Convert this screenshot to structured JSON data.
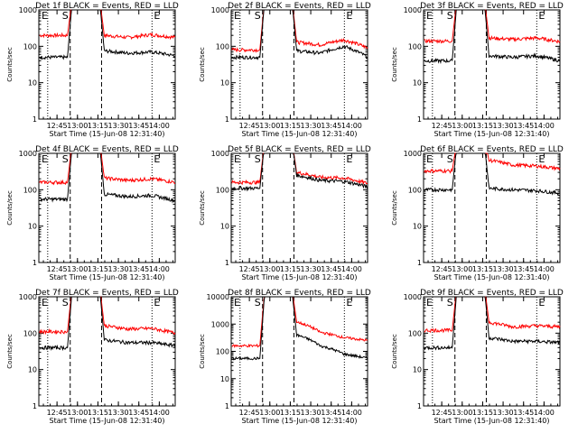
{
  "chart_data": [
    {
      "type": "line",
      "title": "Det 1f BLACK = Events, RED = LLD",
      "xlabel": "Start Time (15-Jun-08 12:31:40)",
      "ylabel": "Counts/sec",
      "yscale": "log",
      "ylim": [
        1,
        1000
      ],
      "xticks": [
        "12:45",
        "13:00",
        "13:15",
        "13:30",
        "13:45",
        "14:00"
      ],
      "markers": [
        "E",
        "S",
        "E"
      ],
      "series": [
        {
          "color": "#ff0000",
          "pre": 200,
          "post": [
            200,
            175,
            210,
            175
          ]
        },
        {
          "color": "#000000",
          "pre": 50,
          "post": [
            75,
            65,
            70,
            55
          ]
        }
      ]
    },
    {
      "type": "line",
      "title": "Det 2f BLACK = Events, RED = LLD",
      "xlabel": "Start Time (15-Jun-08 12:31:40)",
      "ylabel": "Counts/sec",
      "yscale": "log",
      "ylim": [
        1,
        1000
      ],
      "xticks": [
        "12:45",
        "13:00",
        "13:15",
        "13:30",
        "13:45",
        "14:00"
      ],
      "markers": [
        "E",
        "S",
        "E"
      ],
      "series": [
        {
          "color": "#ff0000",
          "pre": 80,
          "post": [
            130,
            110,
            150,
            90
          ]
        },
        {
          "color": "#000000",
          "pre": 50,
          "post": [
            75,
            65,
            100,
            50
          ]
        }
      ]
    },
    {
      "type": "line",
      "title": "Det 3f BLACK = Events, RED = LLD",
      "xlabel": "Start Time (15-Jun-08 12:31:40)",
      "ylabel": "Counts/sec",
      "yscale": "log",
      "ylim": [
        1,
        1000
      ],
      "xticks": [
        "12:45",
        "13:00",
        "13:15",
        "13:30",
        "13:45",
        "14:00"
      ],
      "markers": [
        "E",
        "S",
        "E"
      ],
      "series": [
        {
          "color": "#ff0000",
          "pre": 140,
          "post": [
            170,
            155,
            170,
            135
          ]
        },
        {
          "color": "#000000",
          "pre": 40,
          "post": [
            55,
            50,
            55,
            40
          ]
        }
      ]
    },
    {
      "type": "line",
      "title": "Det 4f BLACK = Events, RED = LLD",
      "xlabel": "Start Time (15-Jun-08 12:31:40)",
      "ylabel": "Counts/sec",
      "yscale": "log",
      "ylim": [
        1,
        1000
      ],
      "xticks": [
        "12:45",
        "13:00",
        "13:15",
        "13:30",
        "13:45",
        "14:00"
      ],
      "markers": [
        "E",
        "S",
        "E"
      ],
      "series": [
        {
          "color": "#ff0000",
          "pre": 160,
          "post": [
            210,
            180,
            200,
            160
          ]
        },
        {
          "color": "#000000",
          "pre": 55,
          "post": [
            75,
            65,
            70,
            50
          ]
        }
      ]
    },
    {
      "type": "line",
      "title": "Det 5f BLACK = Events, RED = LLD",
      "xlabel": "Start Time (15-Jun-08 12:31:40)",
      "ylabel": "Counts/sec",
      "yscale": "log",
      "ylim": [
        1,
        1000
      ],
      "xticks": [
        "12:45",
        "13:00",
        "13:15",
        "13:30",
        "13:45",
        "14:00"
      ],
      "markers": [
        "E",
        "S",
        "E"
      ],
      "series": [
        {
          "color": "#ff0000",
          "pre": 160,
          "post": [
            300,
            220,
            210,
            150
          ]
        },
        {
          "color": "#000000",
          "pre": 110,
          "post": [
            250,
            180,
            170,
            120
          ]
        }
      ]
    },
    {
      "type": "line",
      "title": "Det 6f BLACK = Events, RED = LLD",
      "xlabel": "Start Time (15-Jun-08 12:31:40)",
      "ylabel": "Counts/sec",
      "yscale": "log",
      "ylim": [
        1,
        1000
      ],
      "xticks": [
        "12:45",
        "13:00",
        "13:15",
        "13:30",
        "13:45",
        "14:00"
      ],
      "markers": [
        "E",
        "S",
        "E"
      ],
      "series": [
        {
          "color": "#ff0000",
          "pre": 330,
          "post": [
            650,
            480,
            450,
            380
          ]
        },
        {
          "color": "#000000",
          "pre": 100,
          "post": [
            110,
            100,
            95,
            80
          ]
        }
      ]
    },
    {
      "type": "line",
      "title": "Det 7f BLACK = Events, RED = LLD",
      "xlabel": "Start Time (15-Jun-08 12:31:40)",
      "ylabel": "Counts/sec",
      "yscale": "log",
      "ylim": [
        1,
        1000
      ],
      "xticks": [
        "12:45",
        "13:00",
        "13:15",
        "13:30",
        "13:45",
        "14:00"
      ],
      "markers": [
        "E",
        "S",
        "E"
      ],
      "series": [
        {
          "color": "#ff0000",
          "pre": 110,
          "post": [
            160,
            130,
            135,
            100
          ]
        },
        {
          "color": "#000000",
          "pre": 40,
          "post": [
            65,
            55,
            55,
            45
          ]
        }
      ]
    },
    {
      "type": "line",
      "title": "Det 8f BLACK = Events, RED = LLD",
      "xlabel": "Start Time (15-Jun-08 12:31:40)",
      "ylabel": "Counts/sec",
      "yscale": "log",
      "ylim": [
        1,
        10000
      ],
      "xticks": [
        "12:45",
        "13:00",
        "13:15",
        "13:30",
        "13:45",
        "14:00"
      ],
      "markers": [
        "E",
        "S",
        "E"
      ],
      "series": [
        {
          "color": "#ff0000",
          "pre": 160,
          "post": [
            1200,
            500,
            320,
            250
          ]
        },
        {
          "color": "#000000",
          "pre": 55,
          "post": [
            400,
            160,
            80,
            55
          ]
        }
      ]
    },
    {
      "type": "line",
      "title": "Det 9f BLACK = Events, RED = LLD",
      "xlabel": "Start Time (15-Jun-08 12:31:40)",
      "ylabel": "Counts/sec",
      "yscale": "log",
      "ylim": [
        1,
        1000
      ],
      "xticks": [
        "12:45",
        "13:00",
        "13:15",
        "13:30",
        "13:45",
        "14:00"
      ],
      "markers": [
        "E",
        "S",
        "E"
      ],
      "series": [
        {
          "color": "#ff0000",
          "pre": 120,
          "post": [
            200,
            150,
            160,
            150
          ]
        },
        {
          "color": "#000000",
          "pre": 40,
          "post": [
            75,
            60,
            60,
            55
          ]
        }
      ]
    }
  ]
}
